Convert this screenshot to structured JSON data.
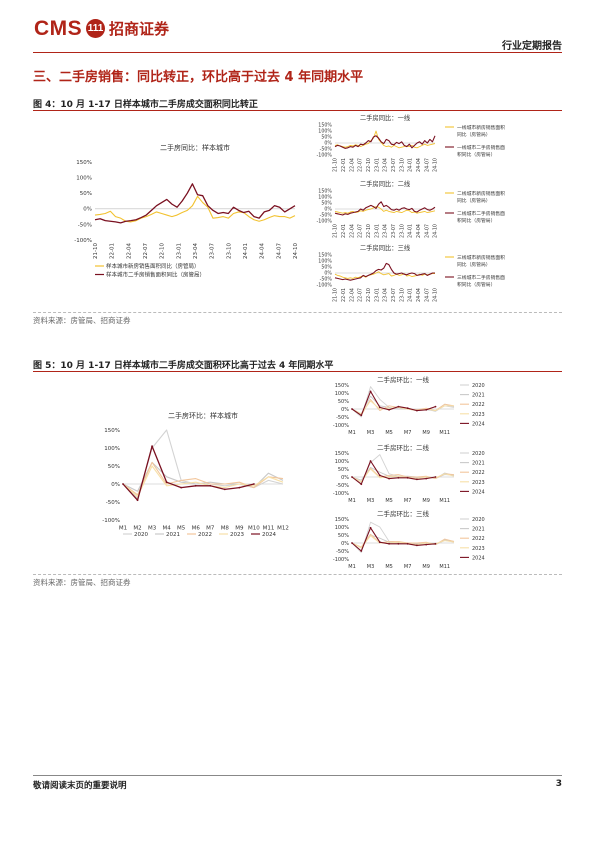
{
  "header": {
    "logo_text": "CMS",
    "logo_seal": "111",
    "company_name": "招商证券",
    "report_type": "行业定期报告"
  },
  "section_title": "三、二手房销售：同比转正，环比高于过去 4 年同期水平",
  "figure4": {
    "title": "图 4：10 月 1-17 日样本城市二手房成交面积同比转正",
    "source": "资料来源：房管局、招商证券"
  },
  "figure5": {
    "title": "图 5：10 月 1-17 日样本城市二手房成交面积环比高于过去 4 年同期水平",
    "source": "资料来源：房管局、招商证券"
  },
  "footer": {
    "note": "敬请阅读末页的重要说明",
    "page_number": "3"
  },
  "colors": {
    "brand": "#b02418",
    "yoy_new": "#f2c230",
    "yoy_second": "#7a1020",
    "y2020": "#d3d3d3",
    "y2021": "#c9c9c9",
    "y2022": "#f2c69c",
    "y2023": "#f7e0a8",
    "y2024": "#7a1020"
  },
  "chart_data": [
    {
      "id": "yoy_main",
      "type": "line",
      "title": "二手房同比：样本城市",
      "ylim": [
        -100,
        150
      ],
      "yticks": [
        "150%",
        "100%",
        "50%",
        "0%",
        "-50%",
        "-100%"
      ],
      "x_ticks": [
        "21-10",
        "22-01",
        "22-04",
        "22-07",
        "22-10",
        "23-01",
        "23-04",
        "23-07",
        "23-10",
        "24-01",
        "24-04",
        "24-07",
        "24-10"
      ],
      "series": [
        {
          "name": "样本城市新房销售面积同比（房管局）",
          "color": "#f2c230",
          "values": [
            -20,
            -18,
            -15,
            -8,
            -25,
            -30,
            -40,
            -42,
            -38,
            -30,
            -25,
            -18,
            -10,
            -15,
            -20,
            -25,
            -20,
            -12,
            -5,
            10,
            40,
            20,
            5,
            -30,
            -28,
            -25,
            -30,
            -15,
            -10,
            -12,
            -25,
            -35,
            -40,
            -35,
            -28,
            -22,
            -25,
            -25,
            -30,
            -22
          ]
        },
        {
          "name": "样本城市二手房销售面积同比（房管局）",
          "color": "#7a1020",
          "values": [
            -35,
            -32,
            -38,
            -40,
            -42,
            -45,
            -40,
            -38,
            -35,
            -28,
            -20,
            -5,
            10,
            20,
            30,
            15,
            5,
            25,
            50,
            80,
            45,
            42,
            10,
            -5,
            -15,
            -12,
            -15,
            5,
            -5,
            -12,
            -8,
            -25,
            -30,
            -10,
            -5,
            10,
            5,
            -10,
            0,
            10
          ]
        }
      ]
    },
    {
      "id": "yoy_tier1",
      "type": "line",
      "title": "二手房同比：一线",
      "ylim": [
        -100,
        150
      ],
      "yticks": [
        "150%",
        "100%",
        "50%",
        "0%",
        "-50%",
        "-100%"
      ],
      "x_ticks": [
        "21-10",
        "22-01",
        "22-04",
        "22-07",
        "22-10",
        "23-01",
        "23-04",
        "23-07",
        "23-10",
        "24-01",
        "24-04",
        "24-07",
        "24-10"
      ],
      "series": [
        {
          "name": "一线城市新房销售面积同比（房管局）",
          "color": "#f2c230",
          "values": [
            -20,
            -15,
            -25,
            -30,
            -35,
            -30,
            -20,
            -25,
            -15,
            -20,
            -30,
            -20,
            -10,
            -5,
            20,
            40,
            100,
            30,
            5,
            -20,
            -30,
            -25,
            -35,
            -20,
            -30,
            -40,
            -35,
            -30,
            -25,
            -30,
            -20,
            -35,
            -40,
            -30,
            -20,
            -10,
            -20,
            -15,
            -10,
            -5
          ]
        },
        {
          "name": "一线城市二手房销售面积同比（房管局）",
          "color": "#7a1020",
          "values": [
            -30,
            -20,
            -25,
            -35,
            -45,
            -40,
            -30,
            -35,
            -20,
            -30,
            -10,
            -15,
            0,
            20,
            10,
            50,
            60,
            40,
            10,
            -5,
            30,
            20,
            -10,
            -15,
            5,
            -5,
            10,
            -20,
            -30,
            -10,
            -40,
            -20,
            0,
            10,
            -10,
            20,
            0,
            30,
            10,
            60
          ]
        }
      ]
    },
    {
      "id": "yoy_tier2",
      "type": "line",
      "title": "二手房同比：二线",
      "ylim": [
        -100,
        150
      ],
      "yticks": [
        "150%",
        "100%",
        "50%",
        "0%",
        "-50%",
        "-100%"
      ],
      "x_ticks": [
        "21-10",
        "22-01",
        "22-04",
        "22-07",
        "22-10",
        "23-01",
        "23-04",
        "23-07",
        "23-10",
        "24-01",
        "24-04",
        "24-07",
        "24-10"
      ],
      "series": [
        {
          "name": "二线城市新房销售面积同比（房管局）",
          "color": "#f2c230",
          "values": [
            -20,
            -25,
            -30,
            -35,
            -30,
            -35,
            -25,
            -20,
            -30,
            -25,
            -15,
            -20,
            -10,
            -5,
            0,
            10,
            20,
            15,
            0,
            -20,
            -10,
            -20,
            -25,
            -30,
            -20,
            -25,
            -30,
            -20,
            -10,
            -15,
            -30,
            -25,
            -35,
            -30,
            -25,
            -20,
            -30,
            -25,
            -20,
            -15
          ]
        },
        {
          "name": "二线城市二手房销售面积同比（房管局）",
          "color": "#7a1020",
          "values": [
            -35,
            -40,
            -45,
            -50,
            -40,
            -45,
            -35,
            -30,
            -25,
            -20,
            0,
            -10,
            10,
            20,
            30,
            20,
            5,
            40,
            60,
            20,
            30,
            15,
            -5,
            -10,
            0,
            -10,
            5,
            10,
            0,
            -5,
            5,
            -20,
            -25,
            -10,
            0,
            10,
            -5,
            -10,
            0,
            15
          ]
        }
      ]
    },
    {
      "id": "yoy_tier3",
      "type": "line",
      "title": "二手房同比：三线",
      "ylim": [
        -100,
        150
      ],
      "yticks": [
        "150%",
        "100%",
        "50%",
        "0%",
        "-50%",
        "-100%"
      ],
      "x_ticks": [
        "21-10",
        "22-01",
        "22-04",
        "22-07",
        "22-10",
        "23-01",
        "23-04",
        "23-07",
        "23-10",
        "24-01",
        "24-04",
        "24-07",
        "24-10"
      ],
      "series": [
        {
          "name": "三线城市新房销售面积同比（房管局）",
          "color": "#f2c230",
          "values": [
            -10,
            -20,
            -25,
            -35,
            -40,
            -45,
            -40,
            -45,
            -35,
            -40,
            -30,
            -25,
            -35,
            -20,
            -15,
            -10,
            0,
            10,
            -5,
            -15,
            -10,
            -5,
            -25,
            -20,
            -10,
            -20,
            -15,
            -5,
            -25,
            -20,
            -30,
            -25,
            -20,
            -10,
            -20,
            -10,
            -15,
            -10,
            -5,
            -5
          ]
        },
        {
          "name": "三线城市二手房销售面积同比（房管局）",
          "color": "#7a1020",
          "values": [
            -40,
            -45,
            -50,
            -55,
            -50,
            -55,
            -60,
            -55,
            -50,
            -45,
            -40,
            -20,
            -30,
            -20,
            -10,
            0,
            20,
            30,
            25,
            40,
            80,
            70,
            30,
            0,
            -10,
            -5,
            0,
            -10,
            -15,
            -5,
            0,
            -5,
            -20,
            -15,
            -10,
            -5,
            -20,
            -10,
            0,
            0
          ]
        }
      ]
    },
    {
      "id": "mom_main",
      "type": "line",
      "title": "二手房环比：样本城市",
      "ylim": [
        -100,
        150
      ],
      "yticks": [
        "150%",
        "100%",
        "50%",
        "0%",
        "-50%",
        "-100%"
      ],
      "categories": [
        "M1",
        "M2",
        "M3",
        "M4",
        "M5",
        "M6",
        "M7",
        "M8",
        "M9",
        "M10",
        "M11",
        "M12"
      ],
      "series": [
        {
          "name": "2020",
          "color": "#d3d3d3",
          "values": [
            0,
            -40,
            100,
            150,
            10,
            0,
            0,
            -5,
            0,
            -10,
            10,
            0
          ]
        },
        {
          "name": "2021",
          "color": "#c9c9c9",
          "values": [
            0,
            -20,
            60,
            20,
            5,
            0,
            5,
            0,
            0,
            -10,
            30,
            10
          ]
        },
        {
          "name": "2022",
          "color": "#f2c69c",
          "values": [
            0,
            -30,
            60,
            0,
            10,
            15,
            0,
            0,
            5,
            -10,
            20,
            15
          ]
        },
        {
          "name": "2023",
          "color": "#f7e0a8",
          "values": [
            0,
            -35,
            50,
            -5,
            0,
            5,
            -5,
            -10,
            0,
            -5,
            20,
            5
          ]
        },
        {
          "name": "2024",
          "color": "#7a1020",
          "values": [
            0,
            -45,
            105,
            5,
            -10,
            -5,
            -5,
            -15,
            -10,
            0,
            null,
            null
          ]
        }
      ]
    },
    {
      "id": "mom_tier1",
      "type": "line",
      "title": "二手房环比：一线",
      "ylim": [
        -100,
        150
      ],
      "yticks": [
        "150%",
        "100%",
        "50%",
        "0%",
        "-50%",
        "-100%"
      ],
      "categories": [
        "M1",
        "M2",
        "M3",
        "M4",
        "M5",
        "M6",
        "M7",
        "M8",
        "M9",
        "M10",
        "M11",
        "M12"
      ],
      "x_ticks": [
        "M1",
        "M3",
        "M5",
        "M7",
        "M9",
        "M11"
      ],
      "series": [
        {
          "name": "2020",
          "color": "#d3d3d3",
          "values": [
            0,
            -50,
            140,
            60,
            10,
            0,
            0,
            -10,
            0,
            -15,
            20,
            10
          ]
        },
        {
          "name": "2021",
          "color": "#c9c9c9",
          "values": [
            0,
            -30,
            80,
            20,
            10,
            0,
            0,
            -10,
            -5,
            -10,
            30,
            15
          ]
        },
        {
          "name": "2022",
          "color": "#f2c69c",
          "values": [
            0,
            -40,
            60,
            -10,
            20,
            10,
            0,
            -5,
            5,
            -10,
            30,
            20
          ]
        },
        {
          "name": "2023",
          "color": "#f7e0a8",
          "values": [
            0,
            -30,
            50,
            0,
            5,
            10,
            0,
            -10,
            0,
            -10,
            20,
            20
          ]
        },
        {
          "name": "2024",
          "color": "#7a1020",
          "values": [
            0,
            -40,
            110,
            10,
            -5,
            15,
            5,
            -10,
            -5,
            15,
            null,
            null
          ]
        }
      ]
    },
    {
      "id": "mom_tier2",
      "type": "line",
      "title": "二手房环比：二线",
      "ylim": [
        -100,
        150
      ],
      "yticks": [
        "150%",
        "100%",
        "50%",
        "0%",
        "-50%",
        "-100%"
      ],
      "categories": [
        "M1",
        "M2",
        "M3",
        "M4",
        "M5",
        "M6",
        "M7",
        "M8",
        "M9",
        "M10",
        "M11",
        "M12"
      ],
      "x_ticks": [
        "M1",
        "M3",
        "M5",
        "M7",
        "M9",
        "M11"
      ],
      "series": [
        {
          "name": "2020",
          "color": "#d3d3d3",
          "values": [
            0,
            -40,
            90,
            140,
            20,
            5,
            0,
            -5,
            0,
            -10,
            15,
            10
          ]
        },
        {
          "name": "2021",
          "color": "#c9c9c9",
          "values": [
            0,
            -20,
            60,
            30,
            5,
            5,
            5,
            0,
            0,
            -10,
            25,
            10
          ]
        },
        {
          "name": "2022",
          "color": "#f2c69c",
          "values": [
            0,
            -30,
            55,
            0,
            10,
            15,
            0,
            0,
            5,
            -10,
            20,
            15
          ]
        },
        {
          "name": "2023",
          "color": "#f7e0a8",
          "values": [
            0,
            -30,
            50,
            -5,
            0,
            5,
            -5,
            -10,
            0,
            -5,
            20,
            5
          ]
        },
        {
          "name": "2024",
          "color": "#7a1020",
          "values": [
            0,
            -45,
            100,
            10,
            -10,
            -5,
            -5,
            -15,
            -10,
            0,
            null,
            null
          ]
        }
      ]
    },
    {
      "id": "mom_tier3",
      "type": "line",
      "title": "二手房环比：三线",
      "ylim": [
        -100,
        150
      ],
      "yticks": [
        "150%",
        "100%",
        "50%",
        "0%",
        "-50%",
        "-100%"
      ],
      "categories": [
        "M1",
        "M2",
        "M3",
        "M4",
        "M5",
        "M6",
        "M7",
        "M8",
        "M9",
        "M10",
        "M11",
        "M12"
      ],
      "x_ticks": [
        "M1",
        "M3",
        "M5",
        "M7",
        "M9",
        "M11"
      ],
      "series": [
        {
          "name": "2020",
          "color": "#d3d3d3",
          "values": [
            0,
            -60,
            130,
            100,
            10,
            0,
            -5,
            -10,
            0,
            -10,
            15,
            10
          ]
        },
        {
          "name": "2021",
          "color": "#c9c9c9",
          "values": [
            0,
            -30,
            50,
            30,
            5,
            0,
            0,
            -5,
            0,
            -10,
            20,
            10
          ]
        },
        {
          "name": "2022",
          "color": "#f2c69c",
          "values": [
            0,
            -25,
            55,
            0,
            10,
            10,
            0,
            0,
            5,
            -10,
            25,
            10
          ]
        },
        {
          "name": "2023",
          "color": "#f7e0a8",
          "values": [
            0,
            -30,
            45,
            0,
            0,
            5,
            -5,
            -10,
            0,
            -5,
            15,
            5
          ]
        },
        {
          "name": "2024",
          "color": "#7a1020",
          "values": [
            0,
            -50,
            95,
            5,
            -5,
            -5,
            -5,
            -15,
            -10,
            -5,
            null,
            null
          ]
        }
      ]
    }
  ]
}
